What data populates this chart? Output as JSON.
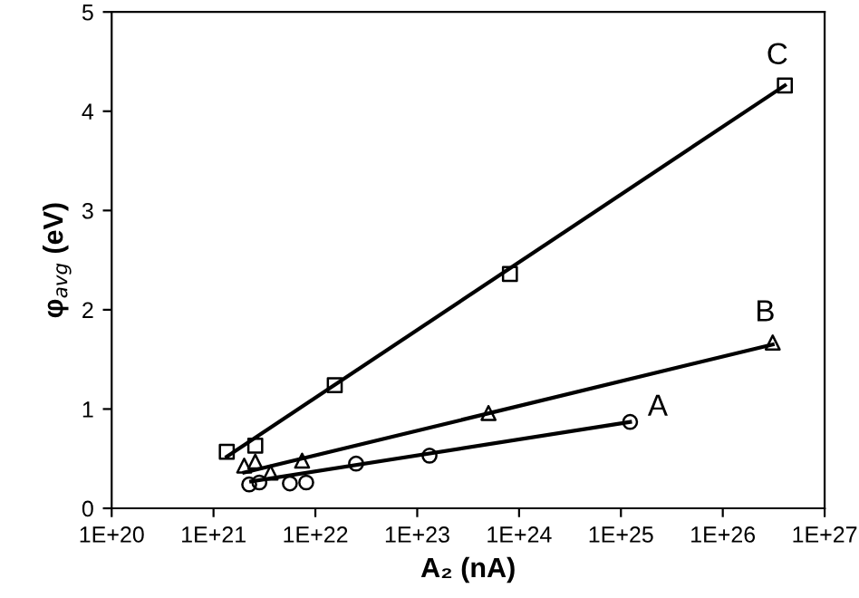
{
  "chart_data": {
    "type": "scatter",
    "xlabel": "A₂ (nA)",
    "ylabel": "φ$_{avg}$ (eV)",
    "log": "x",
    "xlim": [
      1e+20,
      1e+27
    ],
    "ylim": [
      0,
      5
    ],
    "xticks": [
      {
        "value": 1e+20,
        "label": "1E+20"
      },
      {
        "value": 1e+21,
        "label": "1E+21"
      },
      {
        "value": 1e+22,
        "label": "1E+22"
      },
      {
        "value": 1e+23,
        "label": "1E+23"
      },
      {
        "value": 1e+24,
        "label": "1E+24"
      },
      {
        "value": 1e+25,
        "label": "1E+25"
      },
      {
        "value": 1e+26,
        "label": "1E+26"
      },
      {
        "value": 1e+27,
        "label": "1E+27"
      }
    ],
    "yticks": [
      0,
      1,
      2,
      3,
      4,
      5
    ],
    "grid": false,
    "legend": false,
    "series": [
      {
        "marker": "square",
        "color": "#000000",
        "x": [
          1.35e+21,
          2.57e+21,
          1.55e+22,
          8.13e+23,
          4.07e+26
        ],
        "values": [
          0.57,
          0.63,
          1.24,
          2.36,
          4.26
        ]
      },
      {
        "marker": "triangle",
        "color": "#000000",
        "x": [
          2e+21,
          2.57e+21,
          3.63e+21,
          7.41e+21,
          5.01e+23,
          3.09e+26
        ],
        "values": [
          0.43,
          0.47,
          0.36,
          0.48,
          0.96,
          1.67
        ]
      },
      {
        "marker": "circle",
        "color": "#000000",
        "x": [
          2.24e+21,
          2.82e+21,
          5.62e+21,
          8.13e+21,
          2.51e+22,
          1.32e+23,
          1.23e+25
        ],
        "values": [
          0.24,
          0.26,
          0.25,
          0.26,
          0.45,
          0.53,
          0.87
        ]
      },
      {
        "type": "line",
        "marker": "none",
        "color": "#000000",
        "x": [
          1.35e+21,
          4.07e+26
        ],
        "values": [
          0.52,
          4.26
        ]
      },
      {
        "type": "line",
        "marker": "none",
        "color": "#000000",
        "x": [
          2e+21,
          3.09e+26
        ],
        "values": [
          0.36,
          1.65
        ]
      },
      {
        "type": "line",
        "marker": "none",
        "color": "#000000",
        "x": [
          2.34e+21,
          1.23e+25
        ],
        "values": [
          0.27,
          0.87
        ]
      }
    ],
    "annotations": [
      {
        "text": "C",
        "x": 4.07e+26,
        "y": 4.26
      },
      {
        "text": "B",
        "x": 3.09e+26,
        "y": 1.67
      },
      {
        "text": "A",
        "x": 1.23e+25,
        "y": 0.87
      }
    ]
  }
}
